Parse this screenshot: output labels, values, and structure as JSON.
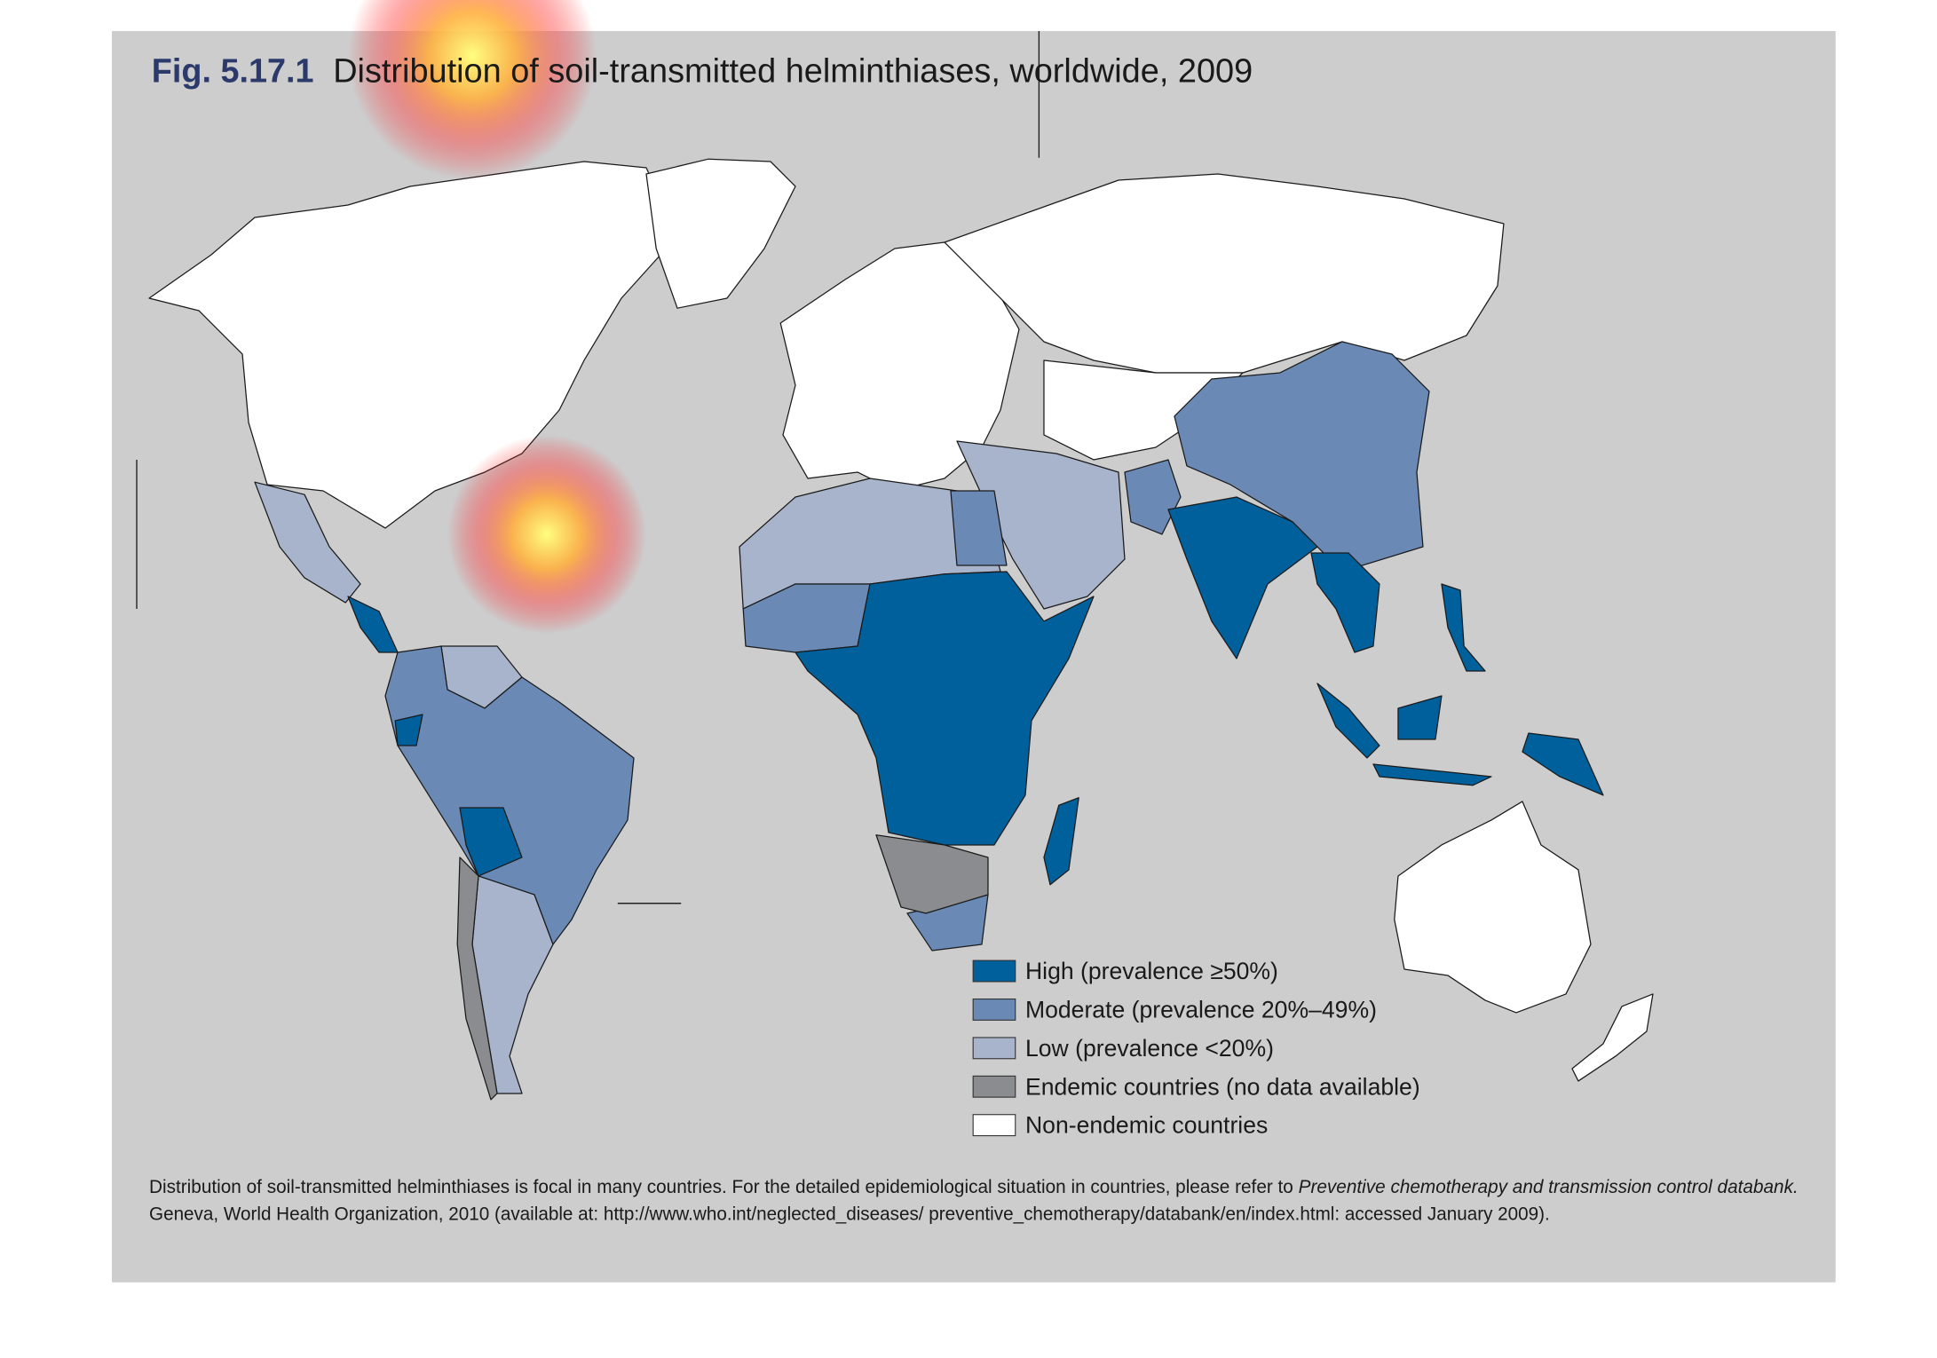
{
  "figure": {
    "number": "Fig. 5.17.1",
    "title": "Distribution of soil-transmitted helminthiases, worldwide, 2009"
  },
  "legend": [
    {
      "label": "High (prevalence ≥50%)",
      "color": "#00609c"
    },
    {
      "label": "Moderate (prevalence 20%–49%)",
      "color": "#6a8ab5"
    },
    {
      "label": "Low (prevalence <20%)",
      "color": "#a8b4cc"
    },
    {
      "label": "Endemic countries (no data available)",
      "color": "#8a8c8f"
    },
    {
      "label": "Non-endemic countries",
      "color": "#ffffff"
    }
  ],
  "note": {
    "line1": "Distribution of soil-transmitted helminthiases is focal in many countries. For the detailed epidemiological situation in countries, please refer to ",
    "italic": "Preventive chemotherapy and transmission control databank.",
    "line2": "Geneva, World Health Organization, 2010 (available at: http://www.who.int/neglected_diseases/ preventive_chemotherapy/databank/en/index.html: accessed January 2009)."
  }
}
